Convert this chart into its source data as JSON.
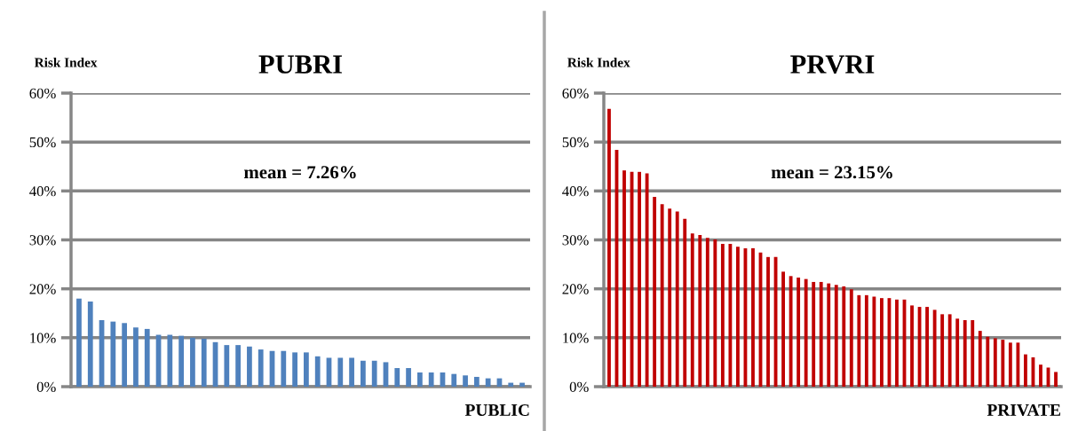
{
  "chart_data": [
    {
      "type": "bar",
      "title": "PUBRI",
      "ylabel": "Risk Index",
      "xlabel": "PUBLIC",
      "annotations": [
        "mean = 7.26%"
      ],
      "color": "#4f81bd",
      "grid": "y",
      "legend": false,
      "tick_labels": "y",
      "categories": [
        null,
        null,
        null,
        null,
        null,
        null,
        null,
        null,
        null,
        null,
        null,
        null,
        null,
        null,
        null,
        null,
        null,
        null,
        null,
        null,
        null,
        null,
        null,
        null,
        null,
        null,
        null,
        null,
        null,
        null,
        null,
        null,
        null,
        null,
        null,
        null,
        null,
        null,
        null,
        null
      ],
      "values": [
        18.0,
        17.4,
        13.6,
        13.3,
        13.0,
        12.1,
        11.8,
        10.6,
        10.6,
        10.4,
        10.0,
        9.8,
        9.1,
        8.5,
        8.5,
        8.2,
        7.6,
        7.3,
        7.3,
        7.0,
        7.0,
        6.2,
        5.9,
        5.9,
        5.9,
        5.3,
        5.3,
        5.0,
        3.8,
        3.8,
        2.9,
        2.9,
        2.9,
        2.6,
        2.3,
        2.0,
        1.7,
        1.7,
        0.8,
        0.8
      ],
      "ylim": [
        0,
        60
      ],
      "yticks": [
        {
          "value": 0,
          "label": "0%"
        },
        {
          "value": 10,
          "label": "10%"
        },
        {
          "value": 20,
          "label": "20%"
        },
        {
          "value": 30,
          "label": "30%"
        },
        {
          "value": 40,
          "label": "40%"
        },
        {
          "value": 50,
          "label": "50%"
        },
        {
          "value": 60,
          "label": "60%"
        }
      ]
    },
    {
      "type": "bar",
      "title": "PRVRI",
      "ylabel": "Risk Index",
      "xlabel": "PRIVATE",
      "annotations": [
        "mean = 23.15%"
      ],
      "color": "#c00000",
      "grid": "y",
      "legend": false,
      "tick_labels": "y",
      "categories": [
        null,
        null,
        null,
        null,
        null,
        null,
        null,
        null,
        null,
        null,
        null,
        null,
        null,
        null,
        null,
        null,
        null,
        null,
        null,
        null,
        null,
        null,
        null,
        null,
        null,
        null,
        null,
        null,
        null,
        null,
        null,
        null,
        null,
        null,
        null,
        null,
        null,
        null,
        null,
        null,
        null,
        null,
        null,
        null,
        null,
        null,
        null,
        null,
        null,
        null,
        null,
        null,
        null,
        null,
        null,
        null,
        null,
        null,
        null,
        null
      ],
      "values": [
        56.8,
        48.4,
        44.2,
        43.9,
        43.9,
        43.6,
        38.8,
        37.3,
        36.4,
        35.8,
        34.3,
        31.3,
        31.0,
        30.4,
        30.1,
        29.2,
        29.2,
        28.6,
        28.3,
        28.3,
        27.4,
        26.5,
        26.5,
        23.5,
        22.6,
        22.3,
        22.0,
        21.4,
        21.4,
        21.1,
        20.8,
        20.5,
        19.9,
        18.7,
        18.7,
        18.4,
        18.1,
        18.1,
        17.8,
        17.8,
        16.6,
        16.3,
        16.3,
        15.7,
        14.8,
        14.8,
        13.9,
        13.6,
        13.6,
        11.4,
        10.2,
        9.9,
        9.6,
        9.0,
        9.0,
        6.6,
        6.0,
        4.5,
        3.9,
        3.0
      ],
      "ylim": [
        0,
        60
      ],
      "yticks": [
        {
          "value": 0,
          "label": "0%"
        },
        {
          "value": 10,
          "label": "10%"
        },
        {
          "value": 20,
          "label": "20%"
        },
        {
          "value": 30,
          "label": "30%"
        },
        {
          "value": 40,
          "label": "40%"
        },
        {
          "value": 50,
          "label": "50%"
        },
        {
          "value": 60,
          "label": "60%"
        }
      ]
    }
  ]
}
